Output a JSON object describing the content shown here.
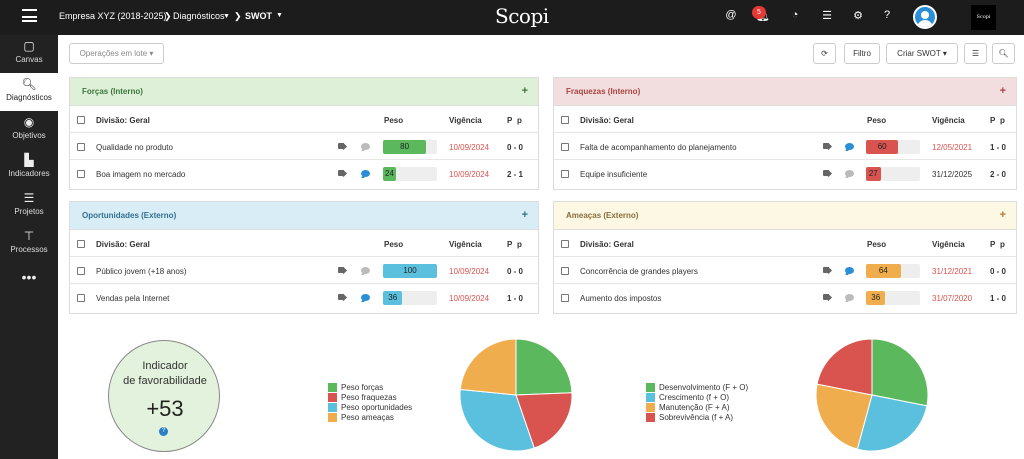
{
  "topbar": {
    "company": "Empresa XYZ (2018-2025)",
    "module": "Diagnósticos",
    "view": "SWOT",
    "logo": "Scopi",
    "notifications_count": "5",
    "mini_logo": "Scopi"
  },
  "sidebar": {
    "items": [
      {
        "label": "Canvas",
        "icon": "canvas-icon"
      },
      {
        "label": "Diagnósticos",
        "icon": "search-icon"
      },
      {
        "label": "Objetivos",
        "icon": "target-icon"
      },
      {
        "label": "Indicadores",
        "icon": "bar-chart-icon"
      },
      {
        "label": "Projetos",
        "icon": "projects-icon"
      },
      {
        "label": "Processos",
        "icon": "sitemap-icon"
      }
    ]
  },
  "toolbar": {
    "batch_ops": "Operações em lote",
    "filter": "Filtro",
    "create_swot": "Criar SWOT"
  },
  "table_headers": {
    "division": "Divisão: Geral",
    "weight": "Peso",
    "validity": "Vigência",
    "p1": "P",
    "p2": "p"
  },
  "panels": {
    "forcas": {
      "title": "Forças (Interno)",
      "rows": [
        {
          "name": "Qualidade no produto",
          "weight": 80,
          "weight_label": "80",
          "date": "10/09/2024",
          "pp": "0 - 0"
        },
        {
          "name": "Boa imagem no mercado",
          "weight": 24,
          "weight_label": "24",
          "date": "10/09/2024",
          "pp": "2 - 1"
        }
      ]
    },
    "fraquezas": {
      "title": "Fraquezas (Interno)",
      "rows": [
        {
          "name": "Falta de acompanhamento do planejamento",
          "weight": 60,
          "weight_label": "60",
          "date": "12/05/2021",
          "pp": "1 - 0"
        },
        {
          "name": "Equipe insuficiente",
          "weight": 27,
          "weight_label": "27",
          "date": "31/12/2025",
          "pp": "2 - 0"
        }
      ]
    },
    "oportunidades": {
      "title": "Oportunidades (Externo)",
      "rows": [
        {
          "name": "Público jovem (+18 anos)",
          "weight": 100,
          "weight_label": "100",
          "date": "10/09/2024",
          "pp": "0 - 0"
        },
        {
          "name": "Vendas pela Internet",
          "weight": 36,
          "weight_label": "36",
          "date": "10/09/2024",
          "pp": "1 - 0"
        }
      ]
    },
    "ameacas": {
      "title": "Ameaças (Externo)",
      "rows": [
        {
          "name": "Concorrência de grandes players",
          "weight": 64,
          "weight_label": "64",
          "date": "31/12/2021",
          "pp": "0 - 0"
        },
        {
          "name": "Aumento dos impostos",
          "weight": 36,
          "weight_label": "36",
          "date": "31/07/2020",
          "pp": "1 - 0"
        }
      ]
    }
  },
  "indicator": {
    "label_line1": "Indicador",
    "label_line2": "de favorabilidade",
    "value": "+53",
    "help": "?"
  },
  "chart_data": [
    {
      "type": "pie",
      "series": [
        {
          "name": "Peso forças",
          "value": 104,
          "color": "#5cb85c"
        },
        {
          "name": "Peso fraquezas",
          "value": 87,
          "color": "#d9534f"
        },
        {
          "name": "Peso oportunidades",
          "value": 136,
          "color": "#5bc0de"
        },
        {
          "name": "Peso ameaças",
          "value": 100,
          "color": "#f0ad4e"
        }
      ],
      "legend": "left"
    },
    {
      "type": "pie",
      "series": [
        {
          "name": "Desenvolvimento (F + O)",
          "value": 240,
          "color": "#5cb85c"
        },
        {
          "name": "Crescimento (f + O)",
          "value": 223,
          "color": "#5bc0de"
        },
        {
          "name": "Manutenção (F + A)",
          "value": 204,
          "color": "#f0ad4e"
        },
        {
          "name": "Sobrevivência (f + A)",
          "value": 187,
          "color": "#d9534f"
        }
      ],
      "legend": "left"
    }
  ]
}
